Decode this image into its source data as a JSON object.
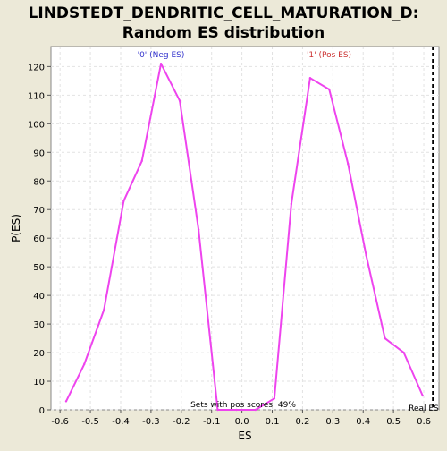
{
  "chart_data": {
    "type": "line",
    "title_line1": "LINDSTEDT_DENDRITIC_CELL_MATURATION_D:",
    "title_line2": "Random ES distribution",
    "xlabel": "ES",
    "ylabel": "P(ES)",
    "xlim": [
      -0.63,
      0.65
    ],
    "ylim": [
      0,
      127
    ],
    "x_ticks": [
      -0.6,
      -0.5,
      -0.4,
      -0.3,
      -0.2,
      -0.1,
      0.0,
      0.1,
      0.2,
      0.3,
      0.4,
      0.5,
      0.6
    ],
    "x_tick_labels": [
      "-0.6",
      "-0.5",
      "-0.4",
      "-0.3",
      "-0.2",
      "-0.1",
      "0.0",
      "0.1",
      "0.2",
      "0.3",
      "0.4",
      "0.5",
      "0.6"
    ],
    "y_ticks": [
      0,
      10,
      20,
      30,
      40,
      50,
      60,
      70,
      80,
      90,
      100,
      110,
      120
    ],
    "grid": true,
    "series": [
      {
        "color": "#ee44ee",
        "x": [
          -0.58,
          -0.52,
          -0.455,
          -0.39,
          -0.33,
          -0.267,
          -0.205,
          -0.143,
          -0.08,
          -0.018,
          0.045,
          0.107,
          0.163,
          0.225,
          0.288,
          0.35,
          0.41,
          0.472,
          0.534,
          0.596
        ],
        "y": [
          3,
          16,
          35,
          73,
          87,
          121,
          108,
          63,
          0,
          0,
          0,
          4,
          72,
          116,
          112,
          86,
          54,
          25,
          20,
          5
        ]
      }
    ],
    "annotations": {
      "neg_label": "'0' (Neg ES)",
      "pos_label": "'1' (Pos ES)",
      "neg_color": "#3333cc",
      "pos_color": "#cc3333",
      "pos_scores_text": "Sets with pos scores: 49%",
      "real_es_label": "Real ES",
      "real_es_value": 0.63
    }
  }
}
